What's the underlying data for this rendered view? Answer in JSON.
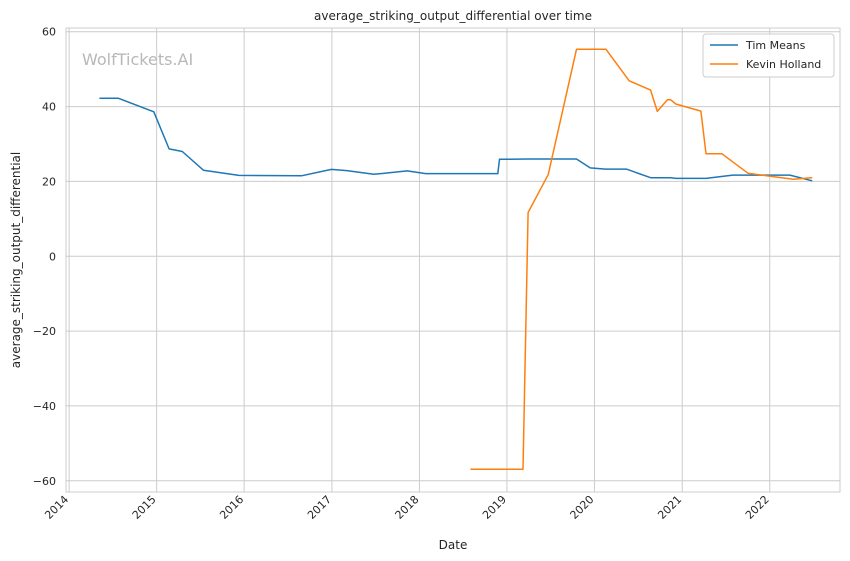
{
  "chart_data": {
    "type": "line",
    "title": "average_striking_output_differential over time",
    "xlabel": "Date",
    "ylabel": "average_striking_output_differential",
    "watermark": "WolfTickets.AI",
    "xlim": [
      "2013-12-19",
      "2022-10-21"
    ],
    "ylim": [
      -63,
      61
    ],
    "x_ticks": [
      "2014",
      "2015",
      "2016",
      "2017",
      "2018",
      "2019",
      "2020",
      "2021",
      "2022"
    ],
    "y_ticks": [
      -60,
      -40,
      -20,
      0,
      20,
      40,
      60
    ],
    "y_tick_labels": [
      "−60",
      "−40",
      "−20",
      "0",
      "20",
      "40",
      "60"
    ],
    "grid": true,
    "legend_position": "top-right",
    "series": [
      {
        "name": "Tim Means",
        "color": "#1f77b4",
        "points": [
          [
            "2014-05-10",
            42.2
          ],
          [
            "2014-07-26",
            42.2
          ],
          [
            "2014-12-20",
            38.6
          ],
          [
            "2015-02-22",
            28.7
          ],
          [
            "2015-04-18",
            28.0
          ],
          [
            "2015-07-15",
            23.0
          ],
          [
            "2015-12-10",
            21.6
          ],
          [
            "2016-08-27",
            21.5
          ],
          [
            "2016-12-30",
            23.2
          ],
          [
            "2017-03-04",
            22.9
          ],
          [
            "2017-06-25",
            21.9
          ],
          [
            "2017-11-11",
            22.8
          ],
          [
            "2018-01-27",
            22.1
          ],
          [
            "2018-11-24",
            22.1
          ],
          [
            "2018-12-01",
            25.9
          ],
          [
            "2019-03-30",
            26.0
          ],
          [
            "2019-10-18",
            26.0
          ],
          [
            "2019-12-14",
            23.6
          ],
          [
            "2020-02-15",
            23.3
          ],
          [
            "2020-05-13",
            23.3
          ],
          [
            "2020-08-22",
            21.0
          ],
          [
            "2020-11-14",
            21.0
          ],
          [
            "2020-12-05",
            20.8
          ],
          [
            "2021-04-10",
            20.8
          ],
          [
            "2021-07-31",
            21.7
          ],
          [
            "2022-03-26",
            21.7
          ],
          [
            "2022-06-25",
            20.2
          ]
        ]
      },
      {
        "name": "Kevin Holland",
        "color": "#ff7f0e",
        "points": [
          [
            "2018-08-04",
            -56.9
          ],
          [
            "2019-03-09",
            -56.9
          ],
          [
            "2019-03-30",
            11.7
          ],
          [
            "2019-06-22",
            21.8
          ],
          [
            "2019-10-18",
            55.3
          ],
          [
            "2020-02-18",
            55.3
          ],
          [
            "2020-05-25",
            46.9
          ],
          [
            "2020-08-22",
            44.4
          ],
          [
            "2020-09-19",
            38.7
          ],
          [
            "2020-10-31",
            41.8
          ],
          [
            "2020-11-14",
            41.8
          ],
          [
            "2020-12-05",
            40.7
          ],
          [
            "2021-03-20",
            38.8
          ],
          [
            "2021-04-10",
            27.4
          ],
          [
            "2021-06-15",
            27.4
          ],
          [
            "2021-10-02",
            22.2
          ],
          [
            "2022-01-15",
            21.3
          ],
          [
            "2022-04-09",
            20.6
          ],
          [
            "2022-06-25",
            21.0
          ]
        ]
      }
    ]
  }
}
